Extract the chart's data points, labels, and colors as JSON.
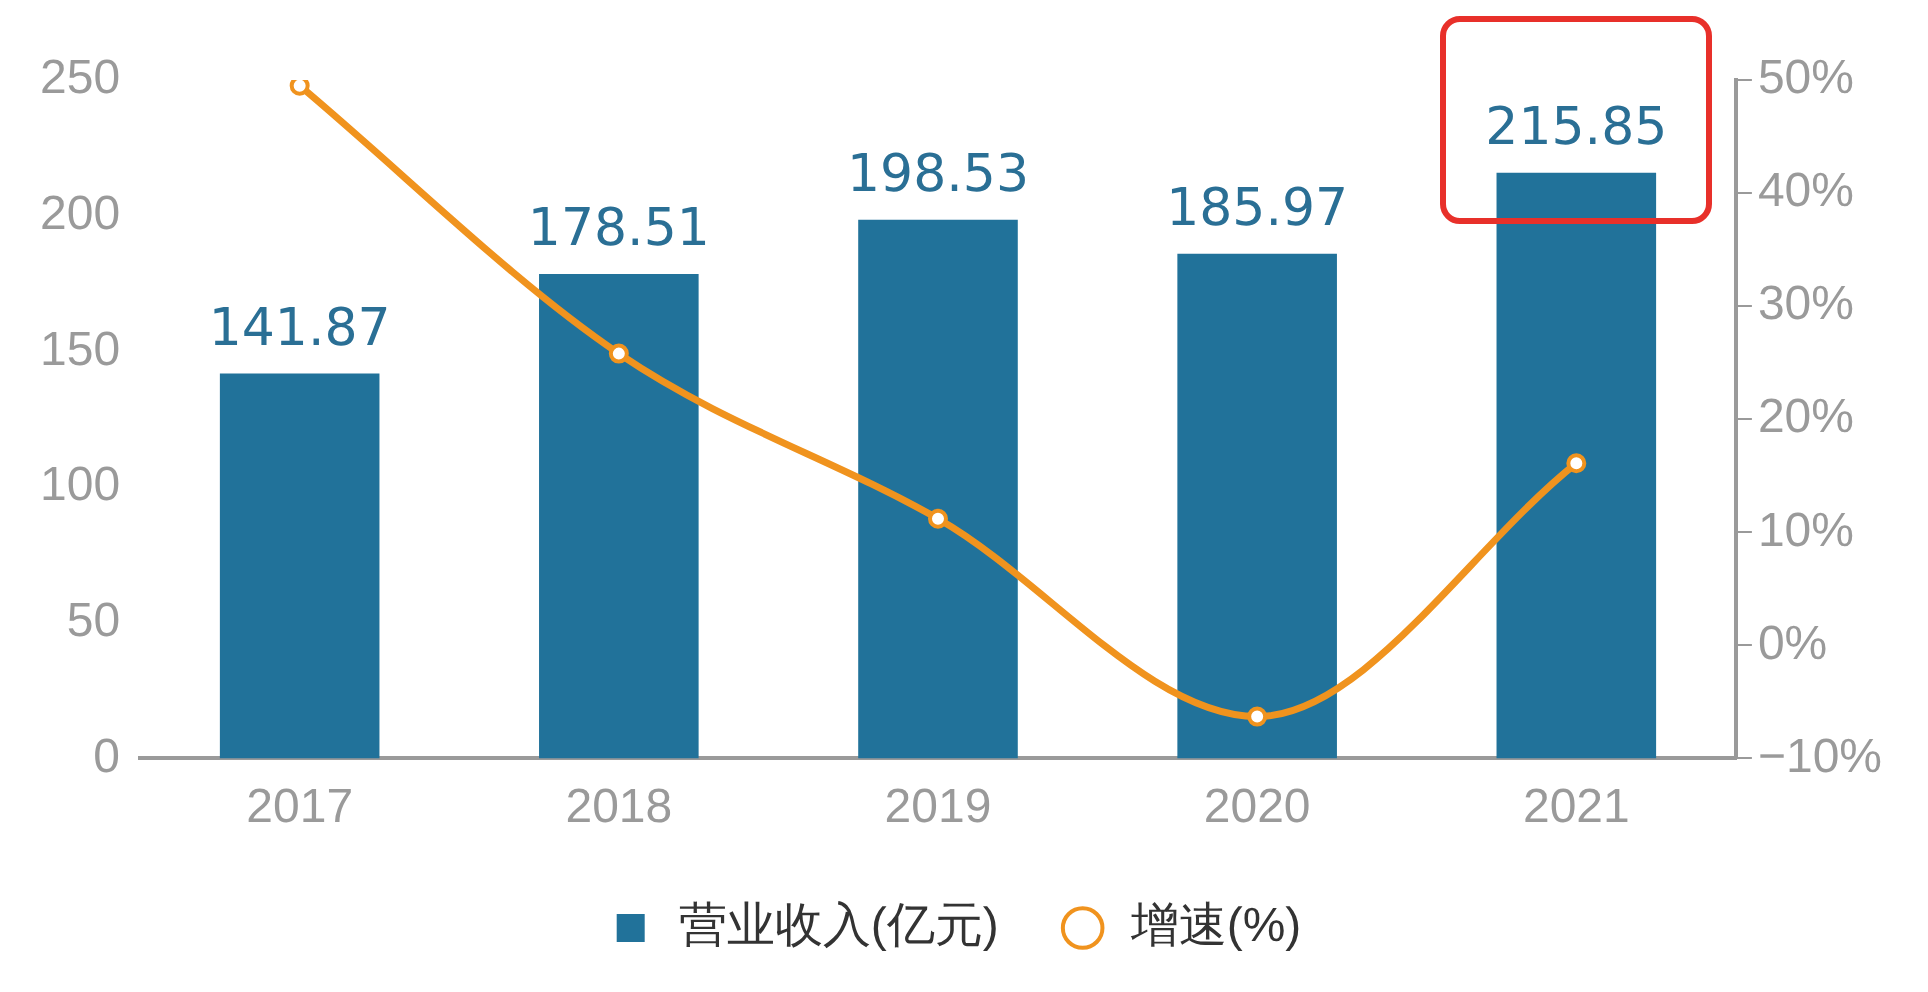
{
  "chart_data": {
    "type": "bar",
    "categories": [
      "2017",
      "2018",
      "2019",
      "2020",
      "2021"
    ],
    "series": [
      {
        "name": "营业收入(亿元)",
        "color": "#21729a",
        "values": [
          141.87,
          178.51,
          198.53,
          185.97,
          215.85
        ],
        "value_labels": [
          "141.87",
          "178.51",
          "198.53",
          "185.97",
          "215.85"
        ]
      },
      {
        "name": "增速(%)",
        "type": "line",
        "axis": "y2",
        "color": "#f0931e",
        "values": [
          49.5,
          25.8,
          11.2,
          -6.3,
          16.1
        ]
      }
    ],
    "ylim": [
      0,
      250
    ],
    "yticks": [
      0,
      50,
      100,
      150,
      200,
      250
    ],
    "y2lim": [
      -10,
      50
    ],
    "y2ticks": [
      {
        "value": -10,
        "label": "−10%"
      },
      {
        "value": 0,
        "label": "0%"
      },
      {
        "value": 10,
        "label": "10%"
      },
      {
        "value": 20,
        "label": "20%"
      },
      {
        "value": 30,
        "label": "30%"
      },
      {
        "value": 40,
        "label": "40%"
      },
      {
        "value": 50,
        "label": "50%"
      }
    ],
    "grid": false,
    "legend": "bottom",
    "marker": "circle",
    "line_style": "solid"
  }
}
